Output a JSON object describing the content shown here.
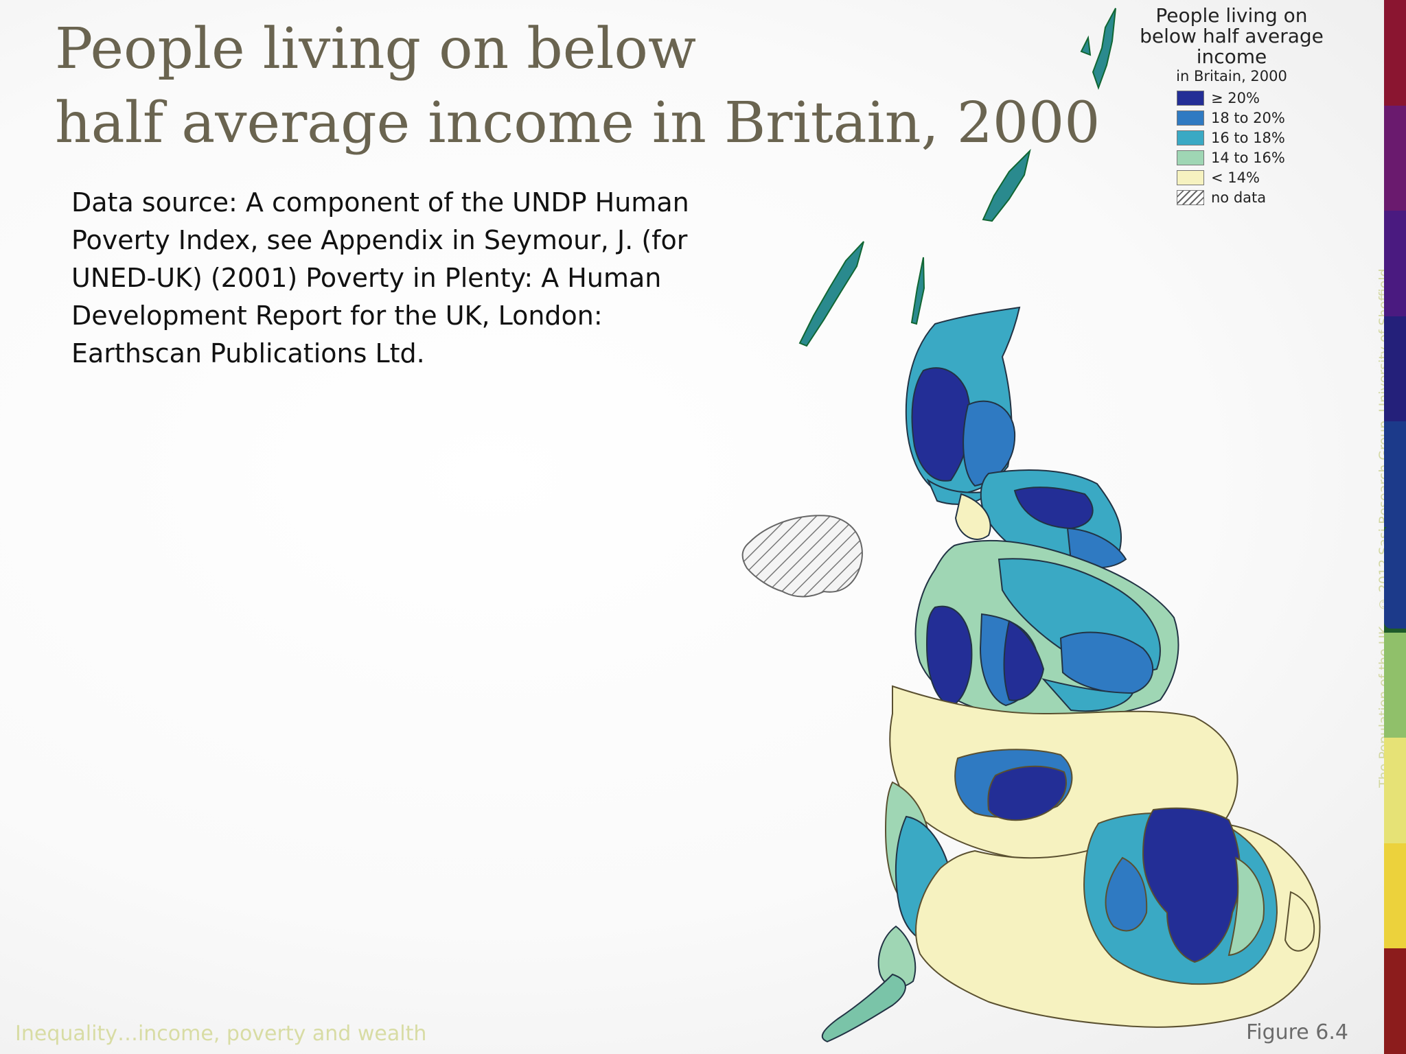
{
  "slide": {
    "title_line1": "People living on below",
    "title_line2": "half average income in Britain, 2000",
    "source_text": "Data source: A component of the UNDP Human Poverty Index, see Appendix in Seymour, J. (for UNED-UK) (2001) Poverty in Plenty: A Human Development Report for the UK, London: Earthscan Publications Ltd.",
    "footer_left": "Inequality…income, poverty and wealth",
    "footer_right": "Figure 6.4",
    "side_credit": "The Population of the UK – © 2012 Sasi Research Group, University of Sheffield"
  },
  "legend": {
    "title": "People living on below half average income",
    "subtitle": "in Britain, 2000",
    "items": [
      {
        "label": "≥ 20%",
        "color": "#232e96"
      },
      {
        "label": "18 to 20%",
        "color": "#2f7ac2"
      },
      {
        "label": "16 to 18%",
        "color": "#3aa9c4"
      },
      {
        "label": "14 to 16%",
        "color": "#9fd6b4"
      },
      {
        "label": "< 14%",
        "color": "#f6f2c0"
      },
      {
        "label": "no data",
        "pattern": "hatched"
      }
    ]
  },
  "colors": {
    "title": "#6a6450",
    "side_bar": [
      "#8a1530",
      "#6a1a6e",
      "#4a1a80",
      "#24207a",
      "#1c3a8a",
      "#1e5a2a",
      "#90c06a",
      "#e6e276",
      "#ecd23c",
      "#8c1c1c"
    ]
  }
}
